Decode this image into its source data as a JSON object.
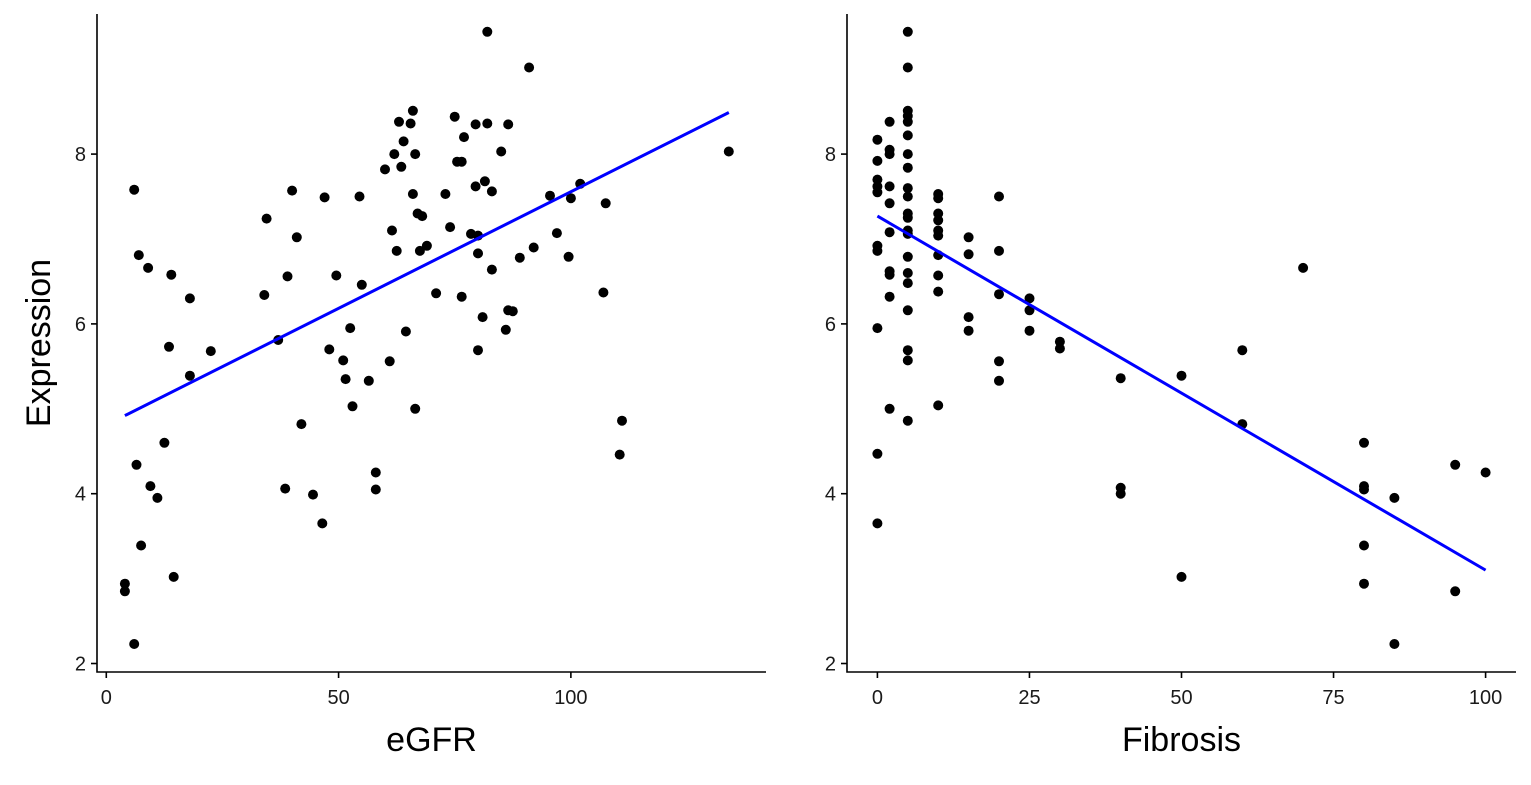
{
  "ylabel": "Expression",
  "colors": {
    "points": "#000000",
    "points_overlap": "#555555",
    "fit_line": "#0000ff"
  },
  "chart_data": [
    {
      "type": "scatter",
      "xlabel": "eGFR",
      "ylabel": "Expression",
      "xlim": [
        -2,
        142
      ],
      "ylim": [
        1.9,
        9.65
      ],
      "xticks": [
        0,
        50,
        100
      ],
      "yticks": [
        2,
        4,
        6,
        8
      ],
      "grid": false,
      "legend": "none",
      "fit_line": {
        "x": [
          4,
          134
        ],
        "y": [
          4.92,
          8.49
        ]
      },
      "points": [
        [
          4,
          2.94
        ],
        [
          4,
          2.85
        ],
        [
          6,
          2.23
        ],
        [
          6,
          7.58
        ],
        [
          6.5,
          4.34
        ],
        [
          7,
          6.81
        ],
        [
          7.5,
          3.39
        ],
        [
          9,
          6.66
        ],
        [
          9.5,
          4.09
        ],
        [
          11,
          3.95
        ],
        [
          12.5,
          4.6
        ],
        [
          13.5,
          5.73
        ],
        [
          14,
          6.58
        ],
        [
          14.5,
          3.02
        ],
        [
          18,
          5.39
        ],
        [
          18,
          6.3
        ],
        [
          22.5,
          5.68
        ],
        [
          34,
          6.34
        ],
        [
          34.5,
          7.24
        ],
        [
          37,
          5.81
        ],
        [
          38.5,
          4.06
        ],
        [
          39,
          6.56
        ],
        [
          40,
          7.57
        ],
        [
          41,
          7.02
        ],
        [
          42,
          4.82
        ],
        [
          44.5,
          3.99
        ],
        [
          46.5,
          3.65
        ],
        [
          47,
          7.49
        ],
        [
          48,
          5.7
        ],
        [
          49.5,
          6.57
        ],
        [
          51,
          5.57
        ],
        [
          51.5,
          5.35
        ],
        [
          52.5,
          5.95
        ],
        [
          53,
          5.03
        ],
        [
          54.5,
          7.5
        ],
        [
          55,
          6.46
        ],
        [
          56.5,
          5.33
        ],
        [
          58,
          4.25
        ],
        [
          58,
          4.05
        ],
        [
          60,
          7.82
        ],
        [
          61,
          5.56
        ],
        [
          61.5,
          7.1
        ],
        [
          62,
          8.0
        ],
        [
          62.5,
          6.86
        ],
        [
          63,
          8.38
        ],
        [
          63.5,
          7.85
        ],
        [
          64,
          8.15
        ],
        [
          64.5,
          5.91
        ],
        [
          65.5,
          8.36
        ],
        [
          66,
          8.51
        ],
        [
          66,
          7.53
        ],
        [
          66.5,
          5.0
        ],
        [
          66.5,
          8.0
        ],
        [
          67,
          7.3
        ],
        [
          67.5,
          6.86
        ],
        [
          68,
          7.27
        ],
        [
          69,
          6.92
        ],
        [
          71,
          6.36
        ],
        [
          73,
          7.53
        ],
        [
          74,
          7.14
        ],
        [
          75,
          8.44
        ],
        [
          75.5,
          7.91
        ],
        [
          76.5,
          7.91
        ],
        [
          76.5,
          6.32
        ],
        [
          77,
          8.2
        ],
        [
          78.5,
          7.06
        ],
        [
          79.5,
          8.35
        ],
        [
          79.5,
          7.62
        ],
        [
          80,
          7.04
        ],
        [
          80,
          6.83
        ],
        [
          80,
          5.69
        ],
        [
          81,
          6.08
        ],
        [
          81.5,
          7.68
        ],
        [
          82,
          8.36
        ],
        [
          82,
          9.44
        ],
        [
          83,
          6.64
        ],
        [
          83,
          7.56
        ],
        [
          85,
          8.03
        ],
        [
          86,
          5.93
        ],
        [
          86.5,
          8.35
        ],
        [
          86.5,
          6.16
        ],
        [
          87.5,
          6.15
        ],
        [
          89,
          6.78
        ],
        [
          91,
          9.02
        ],
        [
          92,
          6.9
        ],
        [
          95.5,
          7.51
        ],
        [
          97,
          7.07
        ],
        [
          99.5,
          6.79
        ],
        [
          100,
          7.48
        ],
        [
          102,
          7.65
        ],
        [
          107,
          6.37
        ],
        [
          107.5,
          7.42
        ],
        [
          110.5,
          4.46
        ],
        [
          111,
          4.86
        ],
        [
          134,
          8.03
        ]
      ]
    },
    {
      "type": "scatter",
      "xlabel": "Fibrosis",
      "ylabel": "",
      "xlim": [
        -5,
        105
      ],
      "ylim": [
        1.9,
        9.65
      ],
      "xticks": [
        0,
        25,
        50,
        75,
        100
      ],
      "yticks": [
        2,
        4,
        6,
        8
      ],
      "grid": false,
      "legend": "none",
      "fit_line": {
        "x": [
          0,
          100
        ],
        "y": [
          7.27,
          3.1
        ]
      },
      "points": [
        [
          0,
          8.17
        ],
        [
          0,
          7.92
        ],
        [
          0,
          7.7
        ],
        [
          0,
          7.62
        ],
        [
          0,
          7.55
        ],
        [
          0,
          6.92
        ],
        [
          0,
          6.86
        ],
        [
          0,
          5.95
        ],
        [
          0,
          4.47
        ],
        [
          0,
          3.65
        ],
        [
          2,
          8.38
        ],
        [
          2,
          8.05
        ],
        [
          2,
          8.0
        ],
        [
          2,
          7.62
        ],
        [
          2,
          7.42
        ],
        [
          2,
          7.08
        ],
        [
          2,
          6.62
        ],
        [
          2,
          6.58
        ],
        [
          2,
          6.32
        ],
        [
          2,
          5.0
        ],
        [
          5,
          9.44
        ],
        [
          5,
          9.02
        ],
        [
          5,
          8.51
        ],
        [
          5,
          8.45
        ],
        [
          5,
          8.38
        ],
        [
          5,
          8.22
        ],
        [
          5,
          8.0
        ],
        [
          5,
          7.84
        ],
        [
          5,
          7.6
        ],
        [
          5,
          7.5
        ],
        [
          5,
          7.3
        ],
        [
          5,
          7.25
        ],
        [
          5,
          7.1
        ],
        [
          5,
          7.06
        ],
        [
          5,
          6.79
        ],
        [
          5,
          6.6
        ],
        [
          5,
          6.48
        ],
        [
          5,
          6.16
        ],
        [
          5,
          5.69
        ],
        [
          5,
          5.57
        ],
        [
          5,
          4.86
        ],
        [
          10,
          7.53
        ],
        [
          10,
          7.48
        ],
        [
          10,
          7.3
        ],
        [
          10,
          7.22
        ],
        [
          10,
          7.1
        ],
        [
          10,
          7.04
        ],
        [
          10,
          6.81
        ],
        [
          10,
          6.57
        ],
        [
          10,
          6.38
        ],
        [
          10,
          5.04
        ],
        [
          15,
          7.02
        ],
        [
          15,
          6.82
        ],
        [
          15,
          6.08
        ],
        [
          15,
          5.92
        ],
        [
          20,
          7.5
        ],
        [
          20,
          6.86
        ],
        [
          20,
          6.35
        ],
        [
          20,
          5.56
        ],
        [
          20,
          5.33
        ],
        [
          25,
          6.3
        ],
        [
          25,
          6.16
        ],
        [
          25,
          5.92
        ],
        [
          30,
          5.79
        ],
        [
          30,
          5.71
        ],
        [
          40,
          5.36
        ],
        [
          40,
          4.07
        ],
        [
          40,
          4.0
        ],
        [
          50,
          5.39
        ],
        [
          50,
          3.02
        ],
        [
          60,
          5.69
        ],
        [
          60,
          4.82
        ],
        [
          70,
          6.66
        ],
        [
          80,
          4.6
        ],
        [
          80,
          4.09
        ],
        [
          80,
          4.05
        ],
        [
          80,
          3.39
        ],
        [
          80,
          2.94
        ],
        [
          85,
          3.95
        ],
        [
          85,
          2.23
        ],
        [
          95,
          4.34
        ],
        [
          95,
          2.85
        ],
        [
          100,
          4.25
        ]
      ]
    }
  ]
}
